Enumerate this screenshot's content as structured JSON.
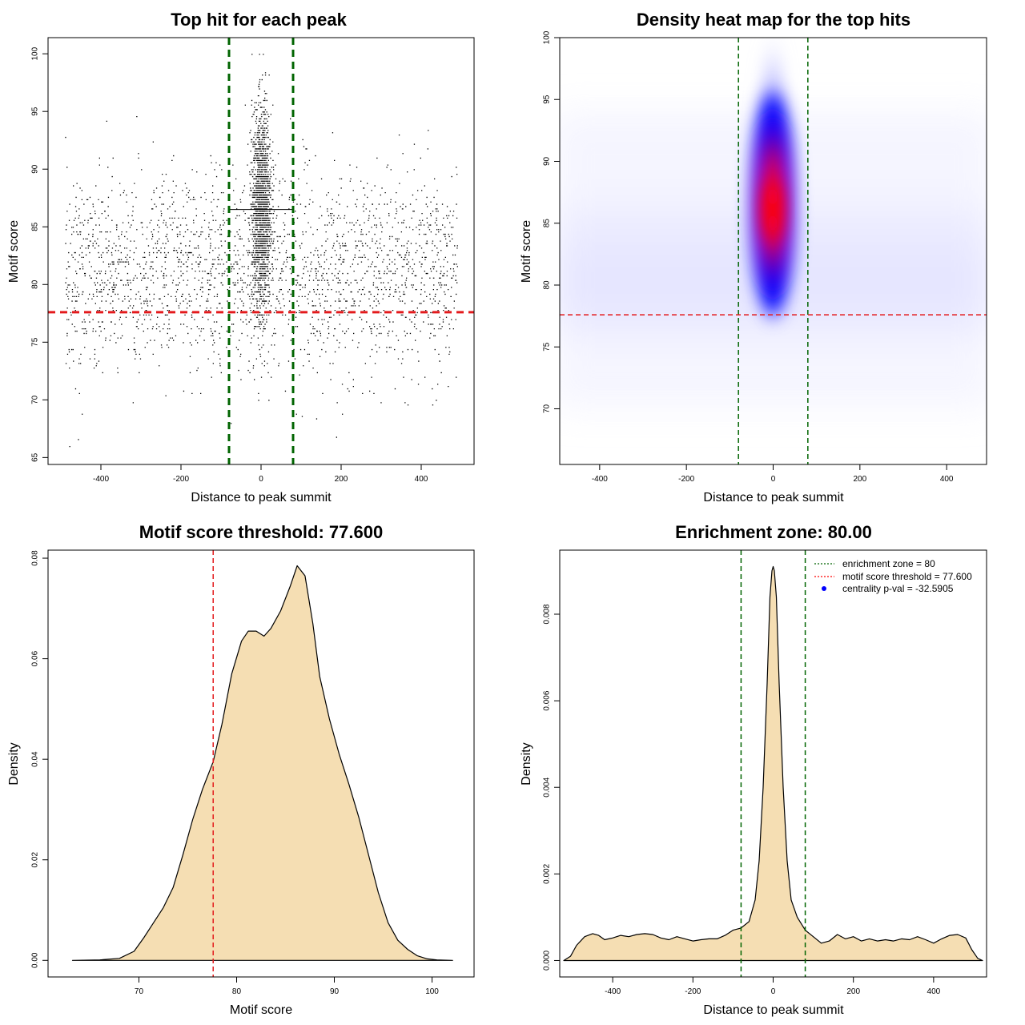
{
  "chart_data": [
    {
      "id": "scatter",
      "type": "scatter",
      "title": "Top hit for each peak",
      "xlabel": "Distance to peak summit",
      "ylabel": "Motif score",
      "xlim": [
        -532,
        532
      ],
      "ylim": [
        64.4,
        101.4
      ],
      "xticks": [
        "-400",
        "-200",
        "0",
        "200",
        "400"
      ],
      "yticks": [
        "65",
        "70",
        "75",
        "80",
        "85",
        "90",
        "95",
        "100"
      ],
      "enrichment_zone": [
        -80,
        80
      ],
      "threshold": 77.6,
      "points_description_counts": {
        "background": 2400,
        "central": 1800
      },
      "background": {
        "x_range": [
          -490,
          490
        ],
        "y_mean": 81,
        "y_sd": 4.3
      },
      "central": {
        "x_sd": 12,
        "y_mean": 86.5,
        "y_sd": 4.3
      }
    },
    {
      "id": "heatmap",
      "type": "heatmap",
      "title": "Density heat map for the top hits",
      "xlabel": "Distance to peak summit",
      "ylabel": "Motif score",
      "xlim": [
        -492,
        492
      ],
      "ylim": [
        65.5,
        100
      ],
      "xticks": [
        "-400",
        "-200",
        "0",
        "200",
        "400"
      ],
      "yticks": [
        "70",
        "75",
        "80",
        "85",
        "90",
        "95",
        "100"
      ],
      "enrichment_zone": [
        -80,
        80
      ],
      "threshold": 77.6,
      "density_peak": {
        "x": 0,
        "y": 86.5
      }
    },
    {
      "id": "score_density",
      "type": "area",
      "title": "Motif score threshold: 77.600",
      "xlabel": "Motif score",
      "ylabel": "Density",
      "xlim": [
        60.7,
        104.3
      ],
      "ylim": [
        -0.0033,
        0.0816
      ],
      "xticks": [
        "70",
        "80",
        "90",
        "100"
      ],
      "yticks": [
        "0.00",
        "0.02",
        "0.04",
        "0.06",
        "0.08"
      ],
      "threshold": 77.6,
      "x": [
        63.2,
        66,
        68,
        69.5,
        70.5,
        71.5,
        72.5,
        73.5,
        74.5,
        75.5,
        76.5,
        77.6,
        78.5,
        79.5,
        80.5,
        81.2,
        82,
        82.8,
        83.5,
        84.5,
        85.5,
        86.2,
        87,
        87.8,
        88.5,
        89.5,
        90.5,
        91.5,
        92.5,
        93.5,
        94.5,
        95.5,
        96.5,
        97.5,
        98.5,
        99.5,
        100.5,
        102.1
      ],
      "y": [
        0.0,
        0.0001,
        0.0004,
        0.0018,
        0.0045,
        0.0075,
        0.0105,
        0.0145,
        0.021,
        0.028,
        0.034,
        0.0395,
        0.047,
        0.057,
        0.0635,
        0.0655,
        0.0655,
        0.0645,
        0.066,
        0.0695,
        0.0745,
        0.0785,
        0.0765,
        0.067,
        0.0565,
        0.048,
        0.041,
        0.035,
        0.0285,
        0.021,
        0.0135,
        0.0075,
        0.004,
        0.0022,
        0.0009,
        0.0003,
        0.0001,
        0.0
      ]
    },
    {
      "id": "distance_density",
      "type": "area",
      "title": "Enrichment zone: 80.00",
      "xlabel": "Distance to peak summit",
      "ylabel": "Density",
      "xlim": [
        -532,
        532
      ],
      "ylim": [
        -0.00038,
        0.00948
      ],
      "xticks": [
        "-400",
        "-200",
        "0",
        "200",
        "400"
      ],
      "yticks": [
        "0.000",
        "0.002",
        "0.004",
        "0.006",
        "0.008"
      ],
      "enrichment_zone": [
        -80,
        80
      ],
      "x": [
        -522,
        -505,
        -490,
        -470,
        -450,
        -435,
        -420,
        -400,
        -380,
        -360,
        -340,
        -320,
        -300,
        -280,
        -260,
        -240,
        -220,
        -200,
        -180,
        -160,
        -140,
        -120,
        -100,
        -80,
        -60,
        -45,
        -35,
        -25,
        -15,
        -8,
        -3,
        0,
        3,
        8,
        15,
        25,
        35,
        45,
        60,
        80,
        100,
        120,
        140,
        160,
        180,
        200,
        220,
        240,
        260,
        280,
        300,
        320,
        340,
        360,
        380,
        400,
        420,
        440,
        460,
        480,
        495,
        510,
        522
      ],
      "y": [
        0.0,
        0.0001,
        0.00035,
        0.00055,
        0.00062,
        0.00058,
        0.00048,
        0.00052,
        0.00058,
        0.00055,
        0.0006,
        0.00062,
        0.0006,
        0.00052,
        0.00048,
        0.00055,
        0.0005,
        0.00045,
        0.00048,
        0.0005,
        0.0005,
        0.00058,
        0.0007,
        0.00075,
        0.0009,
        0.0014,
        0.0023,
        0.004,
        0.0064,
        0.0084,
        0.009,
        0.0091,
        0.009,
        0.0084,
        0.0064,
        0.004,
        0.0023,
        0.0014,
        0.001,
        0.0007,
        0.00055,
        0.0004,
        0.00045,
        0.0006,
        0.0005,
        0.00055,
        0.00045,
        0.0005,
        0.00045,
        0.00048,
        0.00045,
        0.0005,
        0.00048,
        0.00055,
        0.00048,
        0.0004,
        0.0005,
        0.00058,
        0.0006,
        0.00052,
        0.00025,
        5e-05,
        0.0
      ],
      "legend": [
        {
          "label": "enrichment zone = 80",
          "style": "dotted-line",
          "color": "#006400"
        },
        {
          "label": "motif score threshold = 77.600",
          "style": "dotted-line",
          "color": "#ff0000"
        },
        {
          "label": "centrality p-val = -32.5905",
          "style": "point",
          "color": "#0000ff"
        }
      ]
    }
  ],
  "colors": {
    "zone": "#006400",
    "threshold": "#e31a1c",
    "fill": "#f5deb3",
    "points": "#000000",
    "heat_low": "#ffffff",
    "heat_mid": "#0000ff",
    "heat_high": "#ff0000"
  }
}
